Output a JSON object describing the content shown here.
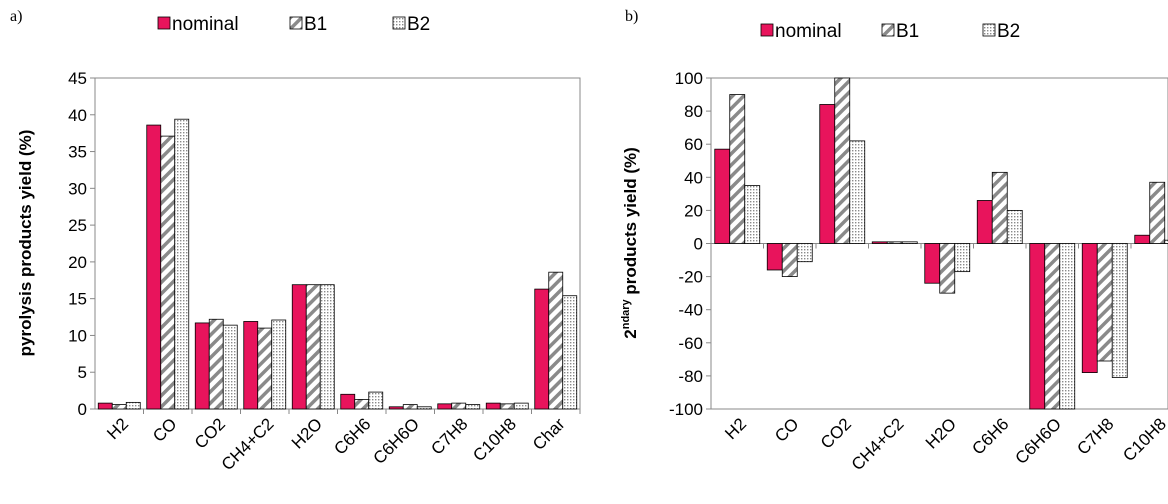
{
  "chart_data": [
    {
      "type": "bar",
      "panel_label": "a)",
      "categories": [
        "H2",
        "CO",
        "CO2",
        "CH4+C2",
        "H2O",
        "C6H6",
        "C6H6O",
        "C7H8",
        "C10H8",
        "Char"
      ],
      "series": [
        {
          "name": "nominal",
          "values": [
            0.8,
            38.6,
            11.7,
            11.9,
            16.9,
            2.0,
            0.3,
            0.7,
            0.8,
            16.3
          ]
        },
        {
          "name": "B1",
          "values": [
            0.6,
            37.1,
            12.2,
            11.0,
            16.9,
            1.3,
            0.6,
            0.8,
            0.7,
            18.6
          ]
        },
        {
          "name": "B2",
          "values": [
            0.9,
            39.4,
            11.4,
            12.1,
            16.9,
            2.3,
            0.3,
            0.6,
            0.8,
            15.4
          ]
        }
      ],
      "ylabel": "pyrolysis products yield (%)",
      "ylim": [
        0,
        45
      ],
      "yticks": [
        0,
        5,
        10,
        15,
        20,
        25,
        30,
        35,
        40,
        45
      ],
      "legend": "top",
      "grid": false
    },
    {
      "type": "bar",
      "panel_label": "b)",
      "categories": [
        "H2",
        "CO",
        "CO2",
        "CH4+C2",
        "H2O",
        "C6H6",
        "C6H6O",
        "C7H8",
        "C10H8"
      ],
      "series": [
        {
          "name": "nominal",
          "values": [
            57,
            -16,
            84,
            1,
            -24,
            26,
            -100,
            -78,
            5
          ]
        },
        {
          "name": "B1",
          "values": [
            90,
            -20,
            100,
            1,
            -30,
            43,
            -100,
            -71,
            37
          ]
        },
        {
          "name": "B2",
          "values": [
            35,
            -11,
            62,
            1,
            -17,
            20,
            -100,
            -81,
            2
          ]
        }
      ],
      "ylabel_prefix": "2",
      "ylabel_sup": "ndary",
      "ylabel_rest": " products yield (%)",
      "ylim": [
        -100,
        100
      ],
      "yticks": [
        -100,
        -80,
        -60,
        -40,
        -20,
        0,
        20,
        40,
        60,
        80,
        100
      ],
      "legend": "top",
      "grid": false
    }
  ],
  "colors": {
    "nominal": "#e8145c",
    "stroke": "#000000",
    "axis": "#888888"
  }
}
